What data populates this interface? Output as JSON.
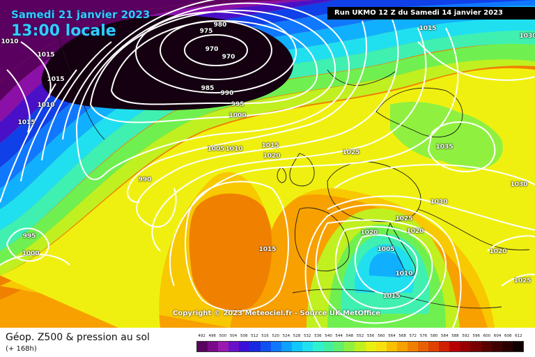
{
  "title": {
    "date": "Samedi 21 janvier 2023",
    "time": "13:00 locale"
  },
  "run_info": "Run UKMO 12 Z du Samedi 14 janvier 2023",
  "copyright": "Copyright © 2023 Meteociel.fr - Source UK MetOffice",
  "footer": {
    "title": "Géop. Z500 & pression au sol",
    "lead_time": "(+ 168h)"
  },
  "legend": {
    "values": [
      "492",
      "496",
      "500",
      "504",
      "508",
      "512",
      "516",
      "520",
      "524",
      "528",
      "532",
      "536",
      "540",
      "544",
      "548",
      "552",
      "556",
      "560",
      "564",
      "568",
      "572",
      "576",
      "580",
      "584",
      "588",
      "592",
      "596",
      "600",
      "604",
      "608",
      "612"
    ],
    "colors": [
      "#5a0060",
      "#7a0a8a",
      "#9a1ab0",
      "#6a10c8",
      "#3a10d8",
      "#1828e0",
      "#1050f0",
      "#1078ff",
      "#10a0ff",
      "#10c8ff",
      "#20e0f0",
      "#30f0d0",
      "#40f0a0",
      "#60f070",
      "#90f040",
      "#c0f020",
      "#e8f010",
      "#f8e010",
      "#f8c000",
      "#f8a000",
      "#f08000",
      "#e86000",
      "#e04000",
      "#d02000",
      "#b80000",
      "#980000",
      "#780000",
      "#580000",
      "#400000",
      "#280000",
      "#100000"
    ],
    "band_colors": {
      "low_core": "#140010",
      "deep_purple": "#5a0060",
      "purple": "#8a10a8",
      "violet": "#4a10c8",
      "blue": "#1040e8",
      "mid_blue": "#1078ff",
      "light_blue": "#10b0ff",
      "cyan": "#20e0f0",
      "aqua": "#40f0b0",
      "green": "#70f050",
      "lime": "#c0f020",
      "yellow": "#f0f010",
      "gold": "#f8c800",
      "orange": "#f8a000",
      "deep_orange": "#f08000"
    }
  },
  "isobar_labels": [
    "1010",
    "1015",
    "1015",
    "1010",
    "1015",
    "980",
    "975",
    "970",
    "970",
    "985",
    "990",
    "995",
    "1000",
    "1005",
    "1010",
    "990",
    "995",
    "1000",
    "1015",
    "1020",
    "1025",
    "1015",
    "1030",
    "1035",
    "1030",
    "1030",
    "1025",
    "1020",
    "1020",
    "1005",
    "1010",
    "1015",
    "1020",
    "1025",
    "1015"
  ]
}
